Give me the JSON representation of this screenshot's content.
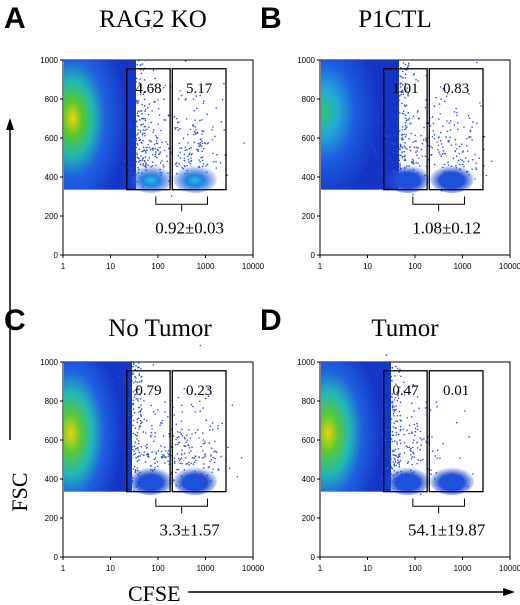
{
  "chart_data": {
    "type": "scatter",
    "xlabel": "CFSE",
    "ylabel": "FSC",
    "x_scale": "log",
    "xlim": [
      1,
      10000
    ],
    "ylim": [
      0,
      1000
    ],
    "x_ticks": [
      "1",
      "10",
      "100",
      "1000",
      "10000"
    ],
    "y_ticks": [
      "0",
      "200",
      "400",
      "600",
      "800",
      "1000"
    ],
    "panels": [
      {
        "letter": "A",
        "title": "RAG2 KO",
        "gates": [
          "4.68",
          "5.17"
        ],
        "ratio": "0.92±0.03"
      },
      {
        "letter": "B",
        "title": "P1CTL",
        "gates": [
          "1.01",
          "0.83"
        ],
        "ratio": "1.08±0.12"
      },
      {
        "letter": "C",
        "title": "No Tumor",
        "gates": [
          "0.79",
          "0.23"
        ],
        "ratio": "3.3±1.57"
      },
      {
        "letter": "D",
        "title": "Tumor",
        "gates": [
          "0.47",
          "0.01"
        ],
        "ratio": "54.1±19.87"
      }
    ]
  }
}
